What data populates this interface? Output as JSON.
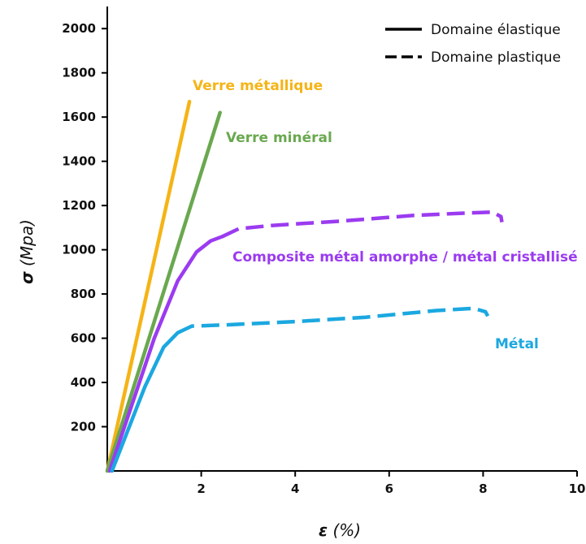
{
  "chart_data": {
    "type": "line",
    "title": "",
    "xlabel_symbol": "ε",
    "xlabel_unit": "(%)",
    "ylabel_symbol": "σ",
    "ylabel_unit": "(Mpa)",
    "xlim": [
      0,
      10
    ],
    "ylim": [
      0,
      2100
    ],
    "x_ticks": [
      2,
      4,
      6,
      8,
      10
    ],
    "y_ticks": [
      200,
      400,
      600,
      800,
      1000,
      1200,
      1400,
      1600,
      1800,
      2000
    ],
    "grid": false,
    "legend": {
      "placement": "top-right",
      "entries": [
        {
          "label": "Domaine élastique",
          "style": "solid"
        },
        {
          "label": "Domaine plastique",
          "style": "dashed"
        }
      ]
    },
    "series": [
      {
        "name": "Verre métallique",
        "color": "#f5b416",
        "elastic": [
          [
            0,
            0
          ],
          [
            1.75,
            1670
          ]
        ],
        "plastic": []
      },
      {
        "name": "Verre minéral",
        "color": "#6aa84f",
        "elastic": [
          [
            0,
            0
          ],
          [
            2.4,
            1620
          ]
        ],
        "plastic": []
      },
      {
        "name": "Composite métal amorphe / métal cristallisé",
        "color": "#9b3bf0",
        "elastic": [
          [
            0.05,
            0
          ],
          [
            1.0,
            600
          ],
          [
            1.5,
            860
          ],
          [
            1.9,
            990
          ],
          [
            2.2,
            1040
          ],
          [
            2.45,
            1060
          ]
        ],
        "plastic": [
          [
            2.45,
            1060
          ],
          [
            2.8,
            1095
          ],
          [
            3.5,
            1110
          ],
          [
            5,
            1130
          ],
          [
            6.5,
            1155
          ],
          [
            7.5,
            1165
          ],
          [
            8.2,
            1170
          ],
          [
            8.38,
            1150
          ],
          [
            8.4,
            1125
          ]
        ]
      },
      {
        "name": "Métal",
        "color": "#1ba8e0",
        "elastic": [
          [
            0.1,
            0
          ],
          [
            0.8,
            380
          ],
          [
            1.2,
            560
          ],
          [
            1.5,
            625
          ]
        ],
        "plastic": [
          [
            1.5,
            625
          ],
          [
            1.8,
            655
          ],
          [
            2.5,
            660
          ],
          [
            4,
            675
          ],
          [
            5.5,
            695
          ],
          [
            7,
            725
          ],
          [
            7.8,
            735
          ],
          [
            8.05,
            720
          ],
          [
            8.1,
            700
          ]
        ]
      }
    ]
  }
}
